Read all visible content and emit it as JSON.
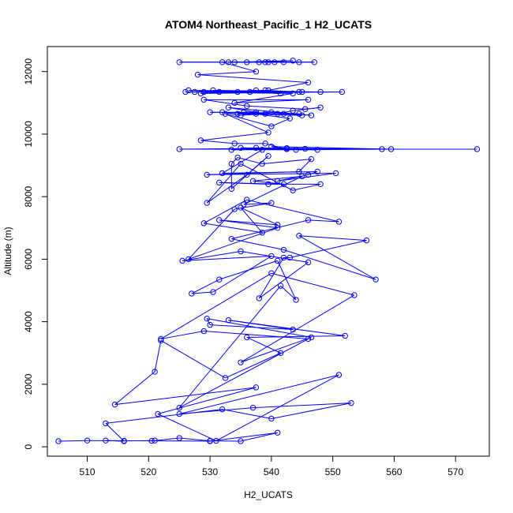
{
  "chart_data": {
    "type": "scatter",
    "title": "ATOM4 Northeast_Pacific_1 H2_UCATS",
    "xlabel": "H2_UCATS",
    "ylabel": "Altitude (m)",
    "xlim": [
      503.5,
      575.5
    ],
    "ylim": [
      -300,
      12800
    ],
    "xticks": [
      510,
      520,
      530,
      540,
      550,
      560,
      570
    ],
    "yticks": [
      0,
      2000,
      4000,
      6000,
      8000,
      10000,
      12000
    ],
    "grid": false,
    "legend": "none",
    "line_color": "#0000ff",
    "marker": "open-circle",
    "connected": true,
    "series": [
      {
        "values": [
          [
            505.3,
            180
          ],
          [
            510,
            200
          ],
          [
            516,
            190
          ],
          [
            521,
            200
          ],
          [
            525,
            280
          ],
          [
            530,
            190
          ],
          [
            535,
            180
          ],
          [
            541,
            450
          ],
          [
            530,
            180
          ],
          [
            520.5,
            190
          ],
          [
            513,
            200
          ],
          [
            516,
            180
          ],
          [
            513,
            750
          ],
          [
            532,
            1200
          ],
          [
            540,
            900
          ],
          [
            553,
            1400
          ],
          [
            537,
            1250
          ],
          [
            525,
            1050
          ],
          [
            551,
            2300
          ],
          [
            531,
            190
          ],
          [
            521.5,
            1050
          ],
          [
            537.5,
            1900
          ],
          [
            514.5,
            1350
          ],
          [
            521,
            2400
          ],
          [
            522,
            3400
          ],
          [
            532.5,
            2200
          ],
          [
            541.5,
            3000
          ],
          [
            536,
            3500
          ],
          [
            552,
            3550
          ],
          [
            533,
            4050
          ],
          [
            543.5,
            3750
          ],
          [
            530,
            3900
          ],
          [
            529.5,
            4100
          ],
          [
            546.5,
            3500
          ],
          [
            535,
            2700
          ],
          [
            553.5,
            4850
          ],
          [
            540,
            5550
          ],
          [
            522,
            3450
          ],
          [
            529,
            3700
          ],
          [
            546,
            3450
          ],
          [
            525,
            1250
          ],
          [
            541.5,
            5150
          ],
          [
            544,
            4700
          ],
          [
            541,
            5950
          ],
          [
            531.5,
            5350
          ],
          [
            527,
            4900
          ],
          [
            530.5,
            4950
          ],
          [
            540,
            6100
          ],
          [
            525.5,
            5950
          ],
          [
            535,
            6250
          ],
          [
            546,
            5900
          ],
          [
            538,
            4750
          ],
          [
            542,
            6050
          ],
          [
            543,
            6050
          ],
          [
            555.5,
            6600
          ],
          [
            544.5,
            6750
          ],
          [
            557,
            5350
          ],
          [
            542,
            6300
          ],
          [
            533.5,
            6650
          ],
          [
            546,
            7250
          ],
          [
            551,
            7200
          ],
          [
            536,
            7900
          ],
          [
            529,
            7150
          ],
          [
            538.5,
            6850
          ],
          [
            535,
            7650
          ],
          [
            541,
            7100
          ],
          [
            531.5,
            7250
          ],
          [
            541,
            7000
          ],
          [
            526.5,
            6000
          ],
          [
            534,
            7600
          ],
          [
            540,
            7800
          ],
          [
            535.5,
            7750
          ],
          [
            545,
            8650
          ],
          [
            537,
            8500
          ],
          [
            542,
            8400
          ],
          [
            531.5,
            8450
          ],
          [
            539.5,
            8400
          ],
          [
            548,
            8400
          ],
          [
            543.5,
            8200
          ],
          [
            535,
            9050
          ],
          [
            529.5,
            7800
          ],
          [
            536,
            8700
          ],
          [
            539.5,
            9300
          ],
          [
            533.5,
            8250
          ],
          [
            533.5,
            9050
          ],
          [
            534.5,
            9250
          ],
          [
            538.5,
            9050
          ],
          [
            546.5,
            9200
          ],
          [
            544.5,
            8800
          ],
          [
            529.5,
            8700
          ],
          [
            550.5,
            8750
          ],
          [
            541,
            8500
          ],
          [
            546,
            8700
          ],
          [
            547.5,
            8800
          ],
          [
            532,
            8750
          ],
          [
            538.5,
            9500
          ],
          [
            542.5,
            9550
          ],
          [
            525,
            9520
          ],
          [
            573.5,
            9520
          ],
          [
            558,
            9520
          ],
          [
            535,
            9560
          ],
          [
            545.5,
            9530
          ],
          [
            533.5,
            9500
          ],
          [
            547.5,
            9500
          ],
          [
            537.5,
            9560
          ],
          [
            544,
            9500
          ],
          [
            559.5,
            9520
          ],
          [
            540,
            9600
          ],
          [
            542.5,
            9520
          ],
          [
            539,
            9700
          ],
          [
            534,
            9700
          ],
          [
            528.5,
            9800
          ],
          [
            539.5,
            10050
          ],
          [
            532.5,
            10650
          ],
          [
            540,
            10250
          ],
          [
            543,
            10500
          ],
          [
            535.5,
            10700
          ],
          [
            537.5,
            10700
          ],
          [
            530,
            10700
          ],
          [
            542,
            10650
          ],
          [
            545,
            10600
          ],
          [
            534.5,
            10650
          ],
          [
            540,
            10700
          ],
          [
            546.5,
            10600
          ],
          [
            533,
            10850
          ],
          [
            539,
            10650
          ],
          [
            535,
            10600
          ],
          [
            532,
            10700
          ],
          [
            537.5,
            10650
          ],
          [
            544.5,
            10650
          ],
          [
            541,
            10650
          ],
          [
            543.5,
            10750
          ],
          [
            548,
            10850
          ],
          [
            545.5,
            10800
          ],
          [
            536,
            10900
          ],
          [
            529,
            11100
          ],
          [
            546,
            11100
          ],
          [
            534,
            11000
          ],
          [
            543.5,
            11300
          ],
          [
            526,
            11350
          ],
          [
            548,
            11350
          ],
          [
            530.5,
            11400
          ],
          [
            545,
            11350
          ],
          [
            551.5,
            11350
          ],
          [
            528.5,
            11300
          ],
          [
            537.5,
            11400
          ],
          [
            531.5,
            11350
          ],
          [
            541.5,
            11300
          ],
          [
            534.5,
            11350
          ],
          [
            536.5,
            11350
          ],
          [
            526.5,
            11400
          ],
          [
            544.5,
            11350
          ],
          [
            539,
            11400
          ],
          [
            529,
            11350
          ],
          [
            527.5,
            11350
          ],
          [
            539.5,
            11400
          ],
          [
            546,
            11650
          ],
          [
            528,
            11900
          ],
          [
            537.5,
            12000
          ],
          [
            532,
            12300
          ],
          [
            525,
            12300
          ],
          [
            539,
            12300
          ],
          [
            547,
            12300
          ],
          [
            534,
            12300
          ],
          [
            543.5,
            12350
          ],
          [
            536,
            12300
          ],
          [
            540.5,
            12300
          ],
          [
            533,
            12300
          ],
          [
            542,
            12300
          ],
          [
            538,
            12300
          ],
          [
            544.5,
            12300
          ],
          [
            539.5,
            12300
          ]
        ]
      }
    ]
  }
}
